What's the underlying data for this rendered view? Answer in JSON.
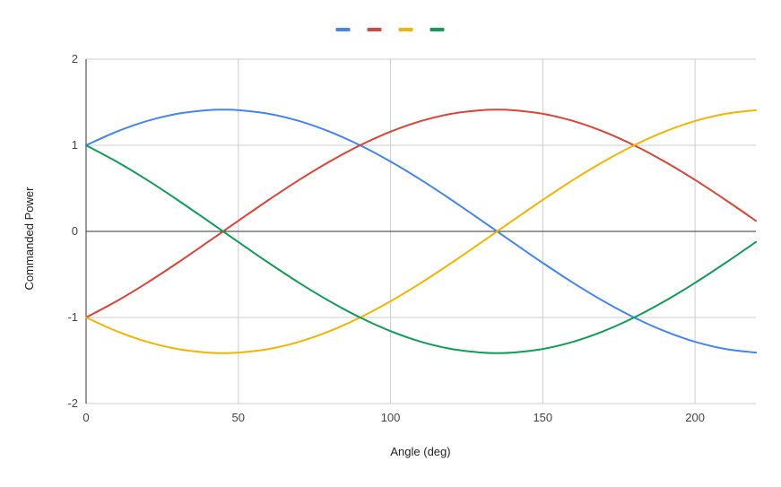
{
  "chart_data": {
    "type": "line",
    "title": "",
    "xlabel": "Angle (deg)",
    "ylabel": "Commanded Power",
    "xlim": [
      0,
      220
    ],
    "ylim": [
      -2,
      2
    ],
    "xticks": [
      0,
      50,
      100,
      150,
      200
    ],
    "yticks": [
      2,
      1,
      0,
      -1,
      -2
    ],
    "x_tick_labels": [
      "0",
      "50",
      "100",
      "150",
      "200"
    ],
    "y_tick_labels": [
      "2",
      "1",
      "0",
      "-1",
      "-2"
    ],
    "grid": true,
    "legend_position": "top-center",
    "x": [
      0,
      10,
      20,
      30,
      40,
      45,
      50,
      60,
      70,
      80,
      90,
      100,
      110,
      120,
      130,
      135,
      140,
      150,
      160,
      170,
      180,
      190,
      200,
      210,
      220
    ],
    "series": [
      {
        "color": "#4285f4",
        "values": [
          1.0,
          1.158,
          1.282,
          1.366,
          1.408,
          1.414,
          1.408,
          1.366,
          1.282,
          1.158,
          1.0,
          0.811,
          0.598,
          0.366,
          0.123,
          0.0,
          -0.123,
          -0.366,
          -0.598,
          -0.811,
          -1.0,
          -1.158,
          -1.282,
          -1.366,
          -1.408
        ]
      },
      {
        "color": "#db4437",
        "values": [
          -1.0,
          -0.811,
          -0.598,
          -0.366,
          -0.123,
          0.0,
          0.123,
          0.366,
          0.598,
          0.811,
          1.0,
          1.158,
          1.282,
          1.366,
          1.408,
          1.414,
          1.408,
          1.366,
          1.282,
          1.158,
          1.0,
          0.811,
          0.598,
          0.366,
          0.123
        ]
      },
      {
        "color": "#f4b400",
        "values": [
          -1.0,
          -1.158,
          -1.282,
          -1.366,
          -1.408,
          -1.414,
          -1.408,
          -1.366,
          -1.282,
          -1.158,
          -1.0,
          -0.811,
          -0.598,
          -0.366,
          -0.123,
          0.0,
          0.123,
          0.366,
          0.598,
          0.811,
          1.0,
          1.158,
          1.282,
          1.366,
          1.408
        ]
      },
      {
        "color": "#0f9d58",
        "values": [
          1.0,
          0.811,
          0.598,
          0.366,
          0.123,
          0.0,
          -0.123,
          -0.366,
          -0.598,
          -0.811,
          -1.0,
          -1.158,
          -1.282,
          -1.366,
          -1.408,
          -1.414,
          -1.408,
          -1.366,
          -1.282,
          -1.158,
          -1.0,
          -0.811,
          -0.598,
          -0.366,
          -0.123
        ]
      }
    ]
  }
}
